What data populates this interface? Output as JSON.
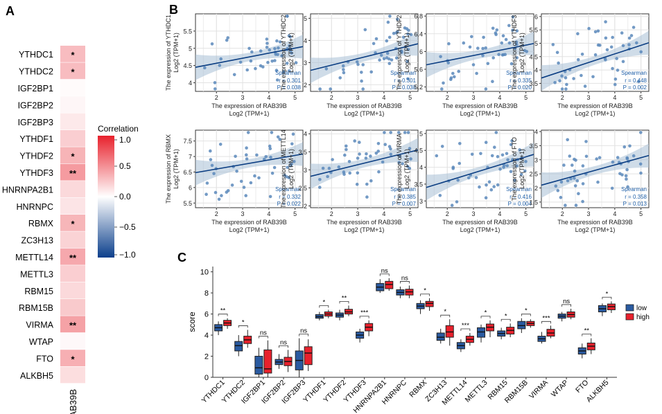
{
  "panels": {
    "a": "A",
    "b": "B",
    "c": "C"
  },
  "colors": {
    "low": "#2a5aa0",
    "high": "#e8212c",
    "scatter_line": "#0a3d82",
    "scatter_band": "#a8bfd6",
    "scatter_point": "#5a88bb",
    "stat_text": "#1f5fa8"
  },
  "chart_data": [
    {
      "type": "heatmap",
      "panel": "A",
      "rows": [
        "YTHDC1",
        "YTHDC2",
        "IGF2BP1",
        "IGF2BP2",
        "IGF2BP3",
        "YTHDF1",
        "YTHDF2",
        "YTHDF3",
        "HNRNPA2B1",
        "HNRNPC",
        "RBMX",
        "ZC3H13",
        "METTL14",
        "METTL3",
        "RBM15",
        "RBM15B",
        "VIRMA",
        "WTAP",
        "FTO",
        "ALKBH5"
      ],
      "column": "RAB39B",
      "values": [
        0.3,
        0.3,
        0.02,
        0.04,
        0.1,
        0.22,
        0.34,
        0.45,
        0.17,
        0.12,
        0.33,
        0.2,
        0.39,
        0.22,
        0.17,
        0.24,
        0.42,
        0.03,
        0.36,
        0.15
      ],
      "significance": [
        "*",
        "*",
        "",
        "",
        "",
        "",
        "*",
        "**",
        "",
        "",
        "*",
        "",
        "**",
        "",
        "",
        "",
        "**",
        "",
        "*",
        ""
      ],
      "colorbar": {
        "title": "Correlation",
        "range": [
          -1,
          1
        ],
        "ticks": [
          "1.0",
          "0.5",
          "0.0",
          "−0.5",
          "−1.0"
        ],
        "tick_values": [
          1,
          0.5,
          0,
          -0.5,
          -1
        ]
      }
    },
    {
      "type": "scatter",
      "panel": "B",
      "xlabel_main": "The expression of RAB39B",
      "xlabel_sub": "Log2 (TPM+1)",
      "ylabel_sub": "Log2 (TPM+1)",
      "stat_method": "Spearman",
      "plots": [
        {
          "gene": "YTHDC1",
          "ylabel": "The expression of YTHDC1",
          "xlim": [
            1.2,
            5.3
          ],
          "ylim": [
            3.75,
            6.0
          ],
          "xticks": [
            2,
            3,
            4,
            5
          ],
          "yticks": [
            4.0,
            4.5,
            5.0,
            5.5
          ],
          "line": [
            4.45,
            5.05
          ],
          "r": "r = 0.301",
          "p": "P = 0.038"
        },
        {
          "gene": "YTHDC2",
          "ylabel": "The expression of YTHDC2",
          "xlim": [
            1.2,
            5.3
          ],
          "ylim": [
            1.7,
            5.2
          ],
          "xticks": [
            2,
            3,
            4,
            5
          ],
          "yticks": [
            2,
            3,
            4,
            5
          ],
          "line": [
            2.65,
            3.85
          ],
          "r": "r = 0.301",
          "p": "P = 0.038"
        },
        {
          "gene": "YTHDF2",
          "ylabel": "The expression of YTHDF2",
          "xlim": [
            1.2,
            5.3
          ],
          "ylim": [
            5.1,
            6.85
          ],
          "xticks": [
            2,
            3,
            4,
            5
          ],
          "yticks": [
            5.2,
            5.6,
            6.0,
            6.4,
            6.8
          ],
          "line": [
            5.7,
            6.18
          ],
          "r": "r = 0.335",
          "p": "P = 0.020"
        },
        {
          "gene": "YTHDF3",
          "ylabel": "The expression of YTHDF3",
          "xlim": [
            1.2,
            5.3
          ],
          "ylim": [
            3.2,
            6.1
          ],
          "xticks": [
            2,
            3,
            4,
            5
          ],
          "yticks": [
            3.5,
            4.0,
            4.5,
            5.0,
            5.5,
            6.0
          ],
          "line": [
            3.7,
            5.02
          ],
          "r": "r = 0.448",
          "p": "P = 0.002"
        },
        {
          "gene": "RBMX",
          "ylabel": "The expression of RBMX",
          "xlim": [
            1.2,
            5.3
          ],
          "ylim": [
            5.35,
            7.85
          ],
          "xticks": [
            2,
            3,
            4,
            5
          ],
          "yticks": [
            5.5,
            6.0,
            6.5,
            7.0,
            7.5
          ],
          "line": [
            6.48,
            7.08
          ],
          "r": "r = 0.332",
          "p": "P = 0.022"
        },
        {
          "gene": "METTL14",
          "ylabel": "The expression of METTL14",
          "xlim": [
            1.2,
            5.3
          ],
          "ylim": [
            1.95,
            4.1
          ],
          "xticks": [
            2,
            3,
            4,
            5
          ],
          "yticks": [
            2.0,
            2.5,
            3.0,
            3.5,
            4.0
          ],
          "line": [
            2.82,
            3.55
          ],
          "r": "r = 0.385",
          "p": "P = 0.007"
        },
        {
          "gene": "VIRMA",
          "ylabel": "The expression of VIRMA",
          "xlim": [
            1.2,
            5.3
          ],
          "ylim": [
            2.8,
            5.1
          ],
          "xticks": [
            2,
            3,
            4,
            5
          ],
          "yticks": [
            3.0,
            3.5,
            4.0,
            4.5,
            5.0
          ],
          "line": [
            3.4,
            4.38
          ],
          "r": "r = 0.416",
          "p": "P = 0.004"
        },
        {
          "gene": "FTO",
          "ylabel": "The expression of FTO",
          "xlim": [
            1.2,
            5.3
          ],
          "ylim": [
            1.3,
            4.05
          ],
          "xticks": [
            2,
            3,
            4,
            5
          ],
          "yticks": [
            1.5,
            2.0,
            2.5,
            3.0,
            3.5,
            4.0
          ],
          "line": [
            2.1,
            3.15
          ],
          "r": "r = 0.358",
          "p": "P = 0.013"
        }
      ]
    },
    {
      "type": "box",
      "panel": "C",
      "ylabel": "score",
      "ylim": [
        0,
        10.5
      ],
      "yticks": [
        0,
        2,
        4,
        6,
        8,
        10
      ],
      "legend": {
        "position": "right",
        "entries": [
          "low",
          "high"
        ]
      },
      "categories": [
        "YTHDC1",
        "YTHDC2",
        "IGF2BP1",
        "IGF2BP2",
        "IGF2BP3",
        "YTHDF1",
        "YTHDF2",
        "YTHDF3",
        "HNRNPA2B1",
        "HNRNPC",
        "RBMX",
        "ZC3H13",
        "METTL14",
        "METTL3",
        "RBM15",
        "RBM15B",
        "VIRMA",
        "WTAP",
        "FTO",
        "ALKBH5"
      ],
      "significance": [
        "**",
        "*",
        "ns",
        "ns",
        "ns",
        "*",
        "**",
        "***",
        "ns",
        "ns",
        "*",
        "*",
        "***",
        "*",
        "*",
        "*",
        "***",
        "ns",
        "**",
        "*"
      ],
      "series": [
        {
          "name": "low",
          "boxes": [
            [
              4.0,
              4.4,
              4.7,
              5.0,
              5.3
            ],
            [
              2.0,
              2.5,
              3.0,
              3.4,
              4.0
            ],
            [
              0.0,
              0.3,
              0.9,
              2.0,
              2.8
            ],
            [
              0.8,
              1.2,
              1.45,
              1.7,
              2.2
            ],
            [
              0.0,
              0.7,
              1.6,
              2.5,
              3.7
            ],
            [
              5.4,
              5.6,
              5.75,
              5.95,
              6.2
            ],
            [
              5.4,
              5.7,
              5.9,
              6.1,
              6.4
            ],
            [
              3.3,
              3.7,
              4.0,
              4.3,
              4.6
            ],
            [
              8.0,
              8.2,
              8.55,
              8.9,
              9.3
            ],
            [
              7.5,
              7.8,
              8.05,
              8.3,
              8.6
            ],
            [
              6.0,
              6.5,
              6.75,
              7.0,
              7.3
            ],
            [
              3.2,
              3.5,
              3.8,
              4.2,
              4.6
            ],
            [
              2.4,
              2.7,
              3.0,
              3.3,
              3.6
            ],
            [
              3.3,
              3.8,
              4.3,
              4.7,
              5.0
            ],
            [
              3.6,
              3.9,
              4.15,
              4.4,
              4.7
            ],
            [
              4.2,
              4.6,
              4.9,
              5.3,
              5.6
            ],
            [
              3.2,
              3.4,
              3.65,
              3.9,
              4.3
            ],
            [
              5.3,
              5.6,
              5.8,
              6.0,
              6.2
            ],
            [
              1.8,
              2.2,
              2.5,
              2.8,
              3.2
            ],
            [
              5.8,
              6.2,
              6.5,
              6.8,
              7.0
            ]
          ]
        },
        {
          "name": "high",
          "boxes": [
            [
              4.6,
              4.9,
              5.15,
              5.4,
              5.6
            ],
            [
              2.8,
              3.2,
              3.55,
              3.9,
              4.5
            ],
            [
              0.0,
              0.4,
              0.8,
              2.6,
              3.5
            ],
            [
              0.5,
              1.1,
              1.5,
              1.9,
              2.6
            ],
            [
              0.6,
              1.2,
              2.3,
              2.9,
              3.6
            ],
            [
              5.6,
              5.8,
              6.0,
              6.2,
              6.4
            ],
            [
              5.8,
              6.0,
              6.2,
              6.45,
              6.8
            ],
            [
              3.9,
              4.4,
              4.75,
              5.1,
              5.4
            ],
            [
              8.2,
              8.4,
              8.8,
              9.1,
              9.4
            ],
            [
              7.5,
              7.8,
              8.1,
              8.35,
              8.7
            ],
            [
              6.3,
              6.7,
              7.0,
              7.2,
              7.5
            ],
            [
              3.0,
              3.8,
              4.3,
              4.9,
              5.5
            ],
            [
              3.0,
              3.3,
              3.6,
              3.9,
              4.2
            ],
            [
              3.8,
              4.4,
              4.75,
              5.05,
              5.4
            ],
            [
              3.8,
              4.1,
              4.45,
              4.75,
              5.1
            ],
            [
              4.7,
              4.9,
              5.1,
              5.3,
              5.5
            ],
            [
              3.7,
              3.9,
              4.2,
              4.55,
              4.9
            ],
            [
              5.5,
              5.7,
              5.95,
              6.2,
              6.5
            ],
            [
              2.2,
              2.6,
              2.95,
              3.25,
              3.7
            ],
            [
              6.1,
              6.4,
              6.7,
              6.95,
              7.2
            ]
          ]
        }
      ]
    }
  ]
}
